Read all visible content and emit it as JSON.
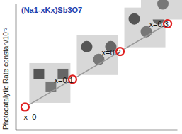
{
  "chart_data": {
    "type": "line",
    "title": "(Na1-xKx)Sb3O7",
    "y_label": "Photocatalytic Rate constan/10⁻³",
    "categories": [
      "x=0",
      "x=0.1",
      "x=0.2",
      "x=0.3"
    ],
    "values": [
      4.5,
      10,
      15.5,
      21
    ],
    "ylim": [
      0,
      25
    ],
    "tick_labels": false,
    "color": "#999999",
    "marker": "circle",
    "grid": false
  }
}
